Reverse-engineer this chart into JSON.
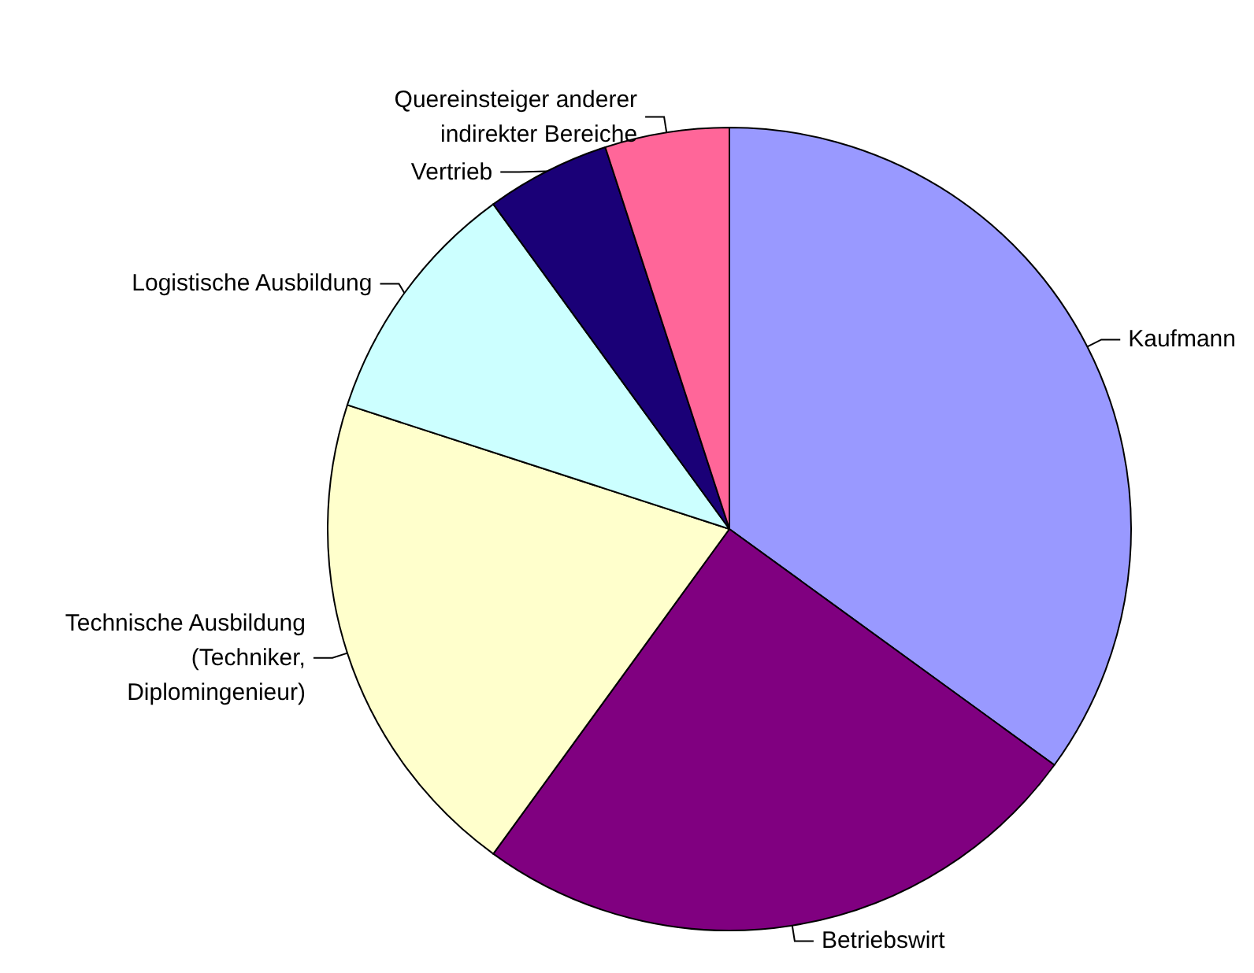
{
  "chart_data": {
    "type": "pie",
    "categories": [
      "Kaufmann",
      "Betriebswirt",
      "Technische Ausbildung\n(Techniker,\nDiplomingenieur)",
      "Logistische Ausbildung",
      "Vertrieb",
      "Quereinsteiger anderer\nindirekter Bereiche"
    ],
    "values": [
      35,
      25,
      20,
      10,
      5,
      5
    ],
    "colors": [
      "#9999ff",
      "#800080",
      "#ffffcc",
      "#ccffff",
      "#1a0077",
      "#ff6699"
    ],
    "legend": false
  }
}
